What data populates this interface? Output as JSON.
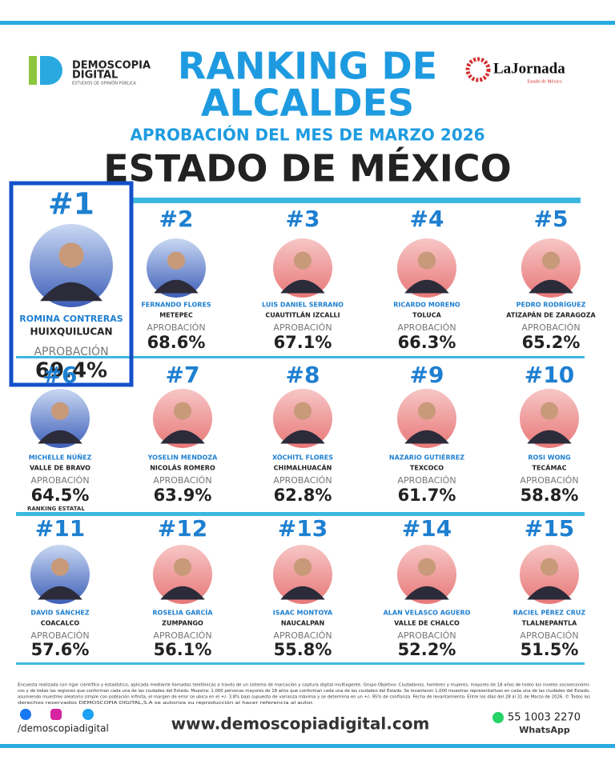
{
  "header": {
    "logo_name": "DEMOSCOPIA",
    "logo_name2": "DIGITAL",
    "logo_sub": "ESTUDIOS DE OPINIÓN PÚBLICA",
    "title_line1": "RANKING DE",
    "title_line2": "ALCALDES",
    "subtitle": "APROBACIÓN DEL MES DE MARZO 2026",
    "region": "ESTADO DE MÉXICO",
    "partner_name": "LaJornada",
    "partner_sub": "Estado de México"
  },
  "rankings": [
    {
      "rank": "#1",
      "name": "ROMINA CONTRERAS",
      "city": "HUIXQUILUCAN",
      "label": "APROBACIÓN",
      "approval": "69.4%"
    },
    {
      "rank": "#2",
      "name": "FERNANDO FLORES",
      "city": "METEPEC",
      "label": "APROBACIÓN",
      "approval": "68.6%"
    },
    {
      "rank": "#3",
      "name": "LUIS DANIEL SERRANO",
      "city": "CUAUTITLÁN IZCALLI",
      "label": "APROBACIÓN",
      "approval": "67.1%"
    },
    {
      "rank": "#4",
      "name": "RICARDO MORENO",
      "city": "TOLUCA",
      "label": "APROBACIÓN",
      "approval": "66.3%"
    },
    {
      "rank": "#5",
      "name": "PEDRO RODRÍGUEZ",
      "city": "ATIZAPÁN DE ZARAGOZA",
      "label": "APROBACIÓN",
      "approval": "65.2%"
    },
    {
      "rank": "#6",
      "name": "MICHELLE NÚÑEZ",
      "city": "VALLE DE BRAVO",
      "label": "APROBACIÓN",
      "approval": "64.5%"
    },
    {
      "rank": "#7",
      "name": "YOSELIN MENDOZA",
      "city": "NICOLÁS ROMERO",
      "label": "APROBACIÓN",
      "approval": "63.9%"
    },
    {
      "rank": "#8",
      "name": "XÓCHITL FLORES",
      "city": "CHIMALHUACÁN",
      "label": "APROBACIÓN",
      "approval": "62.8%"
    },
    {
      "rank": "#9",
      "name": "NAZARIO GUTIÉRREZ",
      "city": "TEXCOCO",
      "label": "APROBACIÓN",
      "approval": "61.7%"
    },
    {
      "rank": "#10",
      "name": "ROSI WONG",
      "city": "TECÁMAC",
      "label": "APROBACIÓN",
      "approval": "58.8%"
    },
    {
      "rank": "#11",
      "name": "DAVID SÁNCHEZ",
      "city": "COACALCO",
      "label": "APROBACIÓN",
      "approval": "57.6%"
    },
    {
      "rank": "#12",
      "name": "ROSELIA GARCÍA",
      "city": "ZUMPANGO",
      "label": "APROBACIÓN",
      "approval": "56.1%"
    },
    {
      "rank": "#13",
      "name": "ISAAC MONTOYA",
      "city": "NAUCALPAN",
      "label": "APROBACIÓN",
      "approval": "55.8%"
    },
    {
      "rank": "#14",
      "name": "ALAN VELASCO AGUERO",
      "city": "VALLE DE CHALCO",
      "label": "APROBACIÓN",
      "approval": "52.2%"
    },
    {
      "rank": "#15",
      "name": "RACIEL PÉREZ CRUZ",
      "city": "TLALNEPANTLA",
      "label": "APROBACIÓN",
      "approval": "51.5%"
    }
  ],
  "section_label": "RANKING ESTATAL",
  "footer": {
    "note": [
      "Encuesta realizada con rigor científico y estadístico, aplicada mediante llamadas telefónicas a través de un sistema de marcación y captura digital multiagente. Grupo Objetivo: Ciudadanos, hombres y mujeres, mayores de 18 años de todos los niveles socioeconómi-",
      "cos y de todas las regiones que conforman cada una de las ciudades del Estado. Muestra: 1,000 personas mayores de 18 años que conforman cada una de las ciudades del Estado. Se levantaron 1,000 muestras representativas en cada una de las ciudades del Estado,",
      "asumiendo muestreo aleatorio simple con población infinita, el margen de error se ubica en el +/- 3.8% bajo supuesto de varianza máxima y se determina en un +/- 95% de confianza. Fecha de levantamiento: Entre los días del 28 al 31 de Marzo de 2026. © Todos los",
      "derechos reservados DEMOSCOPIA DIGITAL,S.A se autoriza su reproducción al hacer referencia al autor."
    ],
    "handle": "/demoscopiadigital",
    "website": "www.demoscopiadigital.com",
    "phone": "55 1003 2270",
    "whatsapp": "WhatsApp"
  }
}
